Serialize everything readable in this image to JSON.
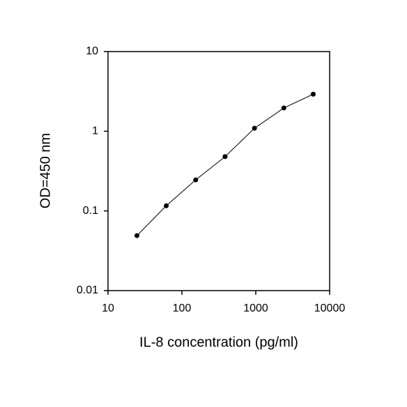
{
  "chart_data": {
    "type": "line",
    "x_label": "IL-8 concentration (pg/ml)",
    "y_label": "OD=450 nm",
    "x": [
      24.6,
      61.4,
      153.6,
      384,
      960,
      2400,
      6000
    ],
    "series": [
      {
        "color": "#000000",
        "values": [
          0.049,
          0.116,
          0.245,
          0.48,
          1.09,
          1.96,
          2.92
        ]
      }
    ],
    "xscale": "log",
    "yscale": "log",
    "xlim": [
      10,
      10000
    ],
    "xticks": [
      10,
      100,
      1000,
      10000
    ],
    "ylim": [
      0.01,
      10
    ],
    "yticks": [
      0.01,
      0.1,
      1,
      10
    ],
    "grid": false
  }
}
